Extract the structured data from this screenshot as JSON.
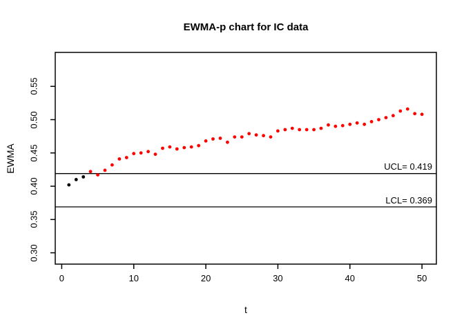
{
  "figure": {
    "title": "EWMA-p chart for IC data",
    "xlabel": "t",
    "ylabel": "EWMA",
    "ucl_label": "UCL= 0.419",
    "lcl_label": "LCL= 0.369"
  },
  "colors": {
    "out_of_control_point": "#ff0000",
    "initial_point": "#000000",
    "axis": "#000000",
    "control_line": "#000000",
    "background": "#ffffff"
  },
  "chart_data": {
    "type": "scatter",
    "title": "EWMA-p chart for IC data",
    "xlabel": "t",
    "ylabel": "EWMA",
    "grid": false,
    "legend": null,
    "xlim": [
      -0.9,
      52
    ],
    "ylim": [
      0.283,
      0.601
    ],
    "xticks": [
      0,
      10,
      20,
      30,
      40,
      50
    ],
    "yticks": [
      0.3,
      0.35,
      0.4,
      0.45,
      0.5,
      0.55
    ],
    "ucl": 0.419,
    "lcl": 0.369,
    "initial_black_points": 3,
    "x": [
      1,
      2,
      3,
      4,
      5,
      6,
      7,
      8,
      9,
      10,
      11,
      12,
      13,
      14,
      15,
      16,
      17,
      18,
      19,
      20,
      21,
      22,
      23,
      24,
      25,
      26,
      27,
      28,
      29,
      30,
      31,
      32,
      33,
      34,
      35,
      36,
      37,
      38,
      39,
      40,
      41,
      42,
      43,
      44,
      45,
      46,
      47,
      48,
      49,
      50
    ],
    "y": [
      0.402,
      0.41,
      0.414,
      0.422,
      0.417,
      0.424,
      0.432,
      0.441,
      0.443,
      0.449,
      0.45,
      0.452,
      0.448,
      0.457,
      0.459,
      0.456,
      0.458,
      0.459,
      0.461,
      0.468,
      0.471,
      0.472,
      0.466,
      0.474,
      0.474,
      0.479,
      0.477,
      0.476,
      0.474,
      0.483,
      0.485,
      0.487,
      0.485,
      0.485,
      0.485,
      0.487,
      0.492,
      0.49,
      0.491,
      0.493,
      0.495,
      0.493,
      0.497,
      0.5,
      0.503,
      0.506,
      0.513,
      0.516,
      0.509,
      0.508
    ]
  }
}
